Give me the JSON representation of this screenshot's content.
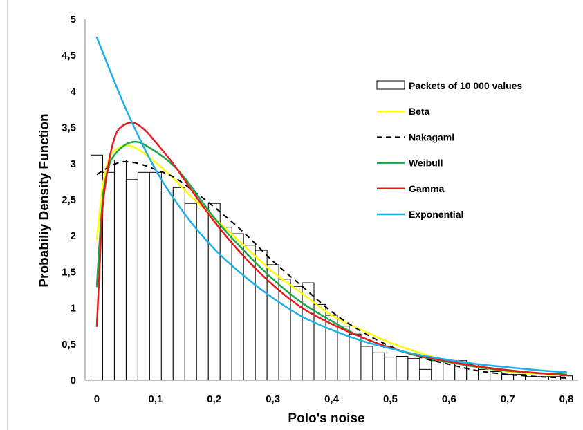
{
  "chart_data": {
    "type": "bar",
    "xlabel": "Polo's noise",
    "ylabel": "Probabiliy Density Function",
    "xlim": [
      -0.02,
      0.82
    ],
    "ylim": [
      0,
      5
    ],
    "x_ticks": [
      "0",
      "0,1",
      "0,2",
      "0,3",
      "0,4",
      "0,5",
      "0,6",
      "0,7",
      "0,8"
    ],
    "x_tick_values": [
      0,
      0.1,
      0.2,
      0.3,
      0.4,
      0.5,
      0.6,
      0.7,
      0.8
    ],
    "y_ticks": [
      "0",
      "0,5",
      "1",
      "1,5",
      "2",
      "2,5",
      "3",
      "3,5",
      "4",
      "4,5",
      "5"
    ],
    "y_tick_values": [
      0,
      0.5,
      1,
      1.5,
      2,
      2.5,
      3,
      3.5,
      4,
      4.5,
      5
    ],
    "legend_position": "right",
    "histogram": {
      "name": "Packets of 10 000 values",
      "bin_width": 0.02,
      "bin_starts": [
        -0.01,
        0.01,
        0.03,
        0.05,
        0.07,
        0.09,
        0.11,
        0.13,
        0.15,
        0.17,
        0.19,
        0.21,
        0.23,
        0.25,
        0.27,
        0.29,
        0.31,
        0.33,
        0.35,
        0.37,
        0.39,
        0.41,
        0.43,
        0.45,
        0.47,
        0.49,
        0.51,
        0.53,
        0.55,
        0.57,
        0.59,
        0.61,
        0.63,
        0.65,
        0.67,
        0.69,
        0.71,
        0.73,
        0.75,
        0.77,
        0.79
      ],
      "values": [
        3.12,
        2.88,
        3.05,
        2.78,
        2.88,
        2.88,
        2.62,
        2.67,
        2.45,
        2.4,
        2.45,
        2.12,
        2.03,
        1.87,
        1.8,
        1.6,
        1.4,
        1.3,
        1.35,
        1.05,
        0.9,
        0.75,
        0.64,
        0.47,
        0.38,
        0.32,
        0.33,
        0.3,
        0.15,
        0.27,
        0.25,
        0.27,
        0.22,
        0.15,
        0.12,
        0.08,
        0.08,
        0.05,
        0.05,
        0.05,
        0.06
      ]
    },
    "series": [
      {
        "name": "Beta",
        "color": "#ffff00",
        "dash": "solid",
        "x": [
          0,
          0.01,
          0.02,
          0.03,
          0.05,
          0.07,
          0.1,
          0.13,
          0.16,
          0.2,
          0.25,
          0.3,
          0.35,
          0.4,
          0.45,
          0.5,
          0.55,
          0.6,
          0.65,
          0.7,
          0.75,
          0.8
        ],
        "y": [
          1.95,
          2.7,
          3.05,
          3.18,
          3.25,
          3.2,
          3.02,
          2.8,
          2.55,
          2.25,
          1.87,
          1.5,
          1.2,
          0.9,
          0.7,
          0.52,
          0.38,
          0.26,
          0.18,
          0.12,
          0.09,
          0.07
        ]
      },
      {
        "name": "Nakagami",
        "color": "#000000",
        "dash": "dashed",
        "x": [
          0,
          0.02,
          0.04,
          0.06,
          0.08,
          0.1,
          0.13,
          0.16,
          0.2,
          0.25,
          0.3,
          0.35,
          0.4,
          0.45,
          0.5,
          0.55,
          0.6,
          0.65,
          0.7,
          0.75,
          0.8
        ],
        "y": [
          2.85,
          2.95,
          3.02,
          3.02,
          2.98,
          2.92,
          2.82,
          2.65,
          2.4,
          2.05,
          1.65,
          1.3,
          0.95,
          0.68,
          0.47,
          0.32,
          0.22,
          0.13,
          0.08,
          0.05,
          0.03
        ]
      },
      {
        "name": "Weibull",
        "color": "#1aa84b",
        "dash": "solid",
        "x": [
          0,
          0.01,
          0.02,
          0.03,
          0.05,
          0.07,
          0.09,
          0.12,
          0.15,
          0.2,
          0.25,
          0.3,
          0.35,
          0.4,
          0.45,
          0.5,
          0.55,
          0.6,
          0.65,
          0.7,
          0.75,
          0.8
        ],
        "y": [
          1.3,
          2.5,
          2.95,
          3.12,
          3.27,
          3.3,
          3.22,
          3.05,
          2.8,
          2.25,
          1.8,
          1.4,
          1.07,
          0.82,
          0.6,
          0.45,
          0.33,
          0.25,
          0.18,
          0.13,
          0.1,
          0.08
        ]
      },
      {
        "name": "Gamma",
        "color": "#e8191c",
        "dash": "solid",
        "x": [
          0,
          0.005,
          0.01,
          0.02,
          0.03,
          0.04,
          0.06,
          0.08,
          0.1,
          0.13,
          0.16,
          0.2,
          0.25,
          0.3,
          0.35,
          0.4,
          0.45,
          0.5,
          0.55,
          0.6,
          0.65,
          0.7,
          0.75,
          0.8
        ],
        "y": [
          0.75,
          1.6,
          2.4,
          3.0,
          3.35,
          3.5,
          3.57,
          3.48,
          3.3,
          3.0,
          2.65,
          2.2,
          1.72,
          1.32,
          1.0,
          0.78,
          0.6,
          0.45,
          0.34,
          0.26,
          0.19,
          0.14,
          0.1,
          0.07
        ]
      },
      {
        "name": "Exponential",
        "color": "#1eaee8",
        "dash": "solid",
        "x": [
          0,
          0.05,
          0.1,
          0.15,
          0.2,
          0.25,
          0.3,
          0.35,
          0.4,
          0.45,
          0.5,
          0.55,
          0.6,
          0.65,
          0.7,
          0.75,
          0.8
        ],
        "y": [
          4.75,
          3.75,
          2.92,
          2.3,
          1.82,
          1.45,
          1.14,
          0.88,
          0.7,
          0.55,
          0.44,
          0.35,
          0.28,
          0.22,
          0.18,
          0.14,
          0.11
        ]
      }
    ]
  }
}
